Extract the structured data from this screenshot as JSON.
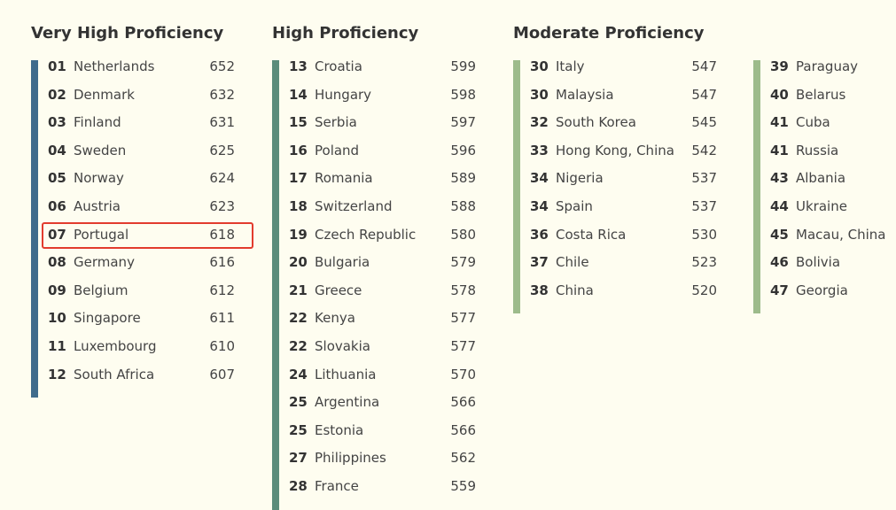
{
  "groups": [
    {
      "title": "Very High Proficiency",
      "columns": [
        {
          "rows": [
            {
              "rank": "01",
              "country": "Netherlands",
              "score": 652
            },
            {
              "rank": "02",
              "country": "Denmark",
              "score": 632
            },
            {
              "rank": "03",
              "country": "Finland",
              "score": 631
            },
            {
              "rank": "04",
              "country": "Sweden",
              "score": 625
            },
            {
              "rank": "05",
              "country": "Norway",
              "score": 624
            },
            {
              "rank": "06",
              "country": "Austria",
              "score": 623
            },
            {
              "rank": "07",
              "country": "Portugal",
              "score": 618
            },
            {
              "rank": "08",
              "country": "Germany",
              "score": 616
            },
            {
              "rank": "09",
              "country": "Belgium",
              "score": 612
            },
            {
              "rank": "10",
              "country": "Singapore",
              "score": 611
            },
            {
              "rank": "11",
              "country": "Luxembourg",
              "score": 610
            },
            {
              "rank": "12",
              "country": "South Africa",
              "score": 607
            }
          ]
        }
      ]
    },
    {
      "title": "High Proficiency",
      "columns": [
        {
          "rows": [
            {
              "rank": "13",
              "country": "Croatia",
              "score": 599
            },
            {
              "rank": "14",
              "country": "Hungary",
              "score": 598
            },
            {
              "rank": "15",
              "country": "Serbia",
              "score": 597
            },
            {
              "rank": "16",
              "country": "Poland",
              "score": 596
            },
            {
              "rank": "17",
              "country": "Romania",
              "score": 589
            },
            {
              "rank": "18",
              "country": "Switzerland",
              "score": 588
            },
            {
              "rank": "19",
              "country": "Czech Republic",
              "score": 580
            },
            {
              "rank": "20",
              "country": "Bulgaria",
              "score": 579
            },
            {
              "rank": "21",
              "country": "Greece",
              "score": 578
            },
            {
              "rank": "22",
              "country": "Kenya",
              "score": 577
            },
            {
              "rank": "22",
              "country": "Slovakia",
              "score": 577
            },
            {
              "rank": "24",
              "country": "Lithuania",
              "score": 570
            },
            {
              "rank": "25",
              "country": "Argentina",
              "score": 566
            },
            {
              "rank": "25",
              "country": "Estonia",
              "score": 566
            },
            {
              "rank": "27",
              "country": "Philippines",
              "score": 562
            },
            {
              "rank": "28",
              "country": "France",
              "score": 559
            }
          ]
        }
      ]
    },
    {
      "title": "Moderate Proficiency",
      "columns": [
        {
          "rows": [
            {
              "rank": "30",
              "country": "Italy",
              "score": 547
            },
            {
              "rank": "30",
              "country": "Malaysia",
              "score": 547
            },
            {
              "rank": "32",
              "country": "South Korea",
              "score": 545
            },
            {
              "rank": "33",
              "country": "Hong Kong, China",
              "score": 542
            },
            {
              "rank": "34",
              "country": "Nigeria",
              "score": 537
            },
            {
              "rank": "34",
              "country": "Spain",
              "score": 537
            },
            {
              "rank": "36",
              "country": "Costa Rica",
              "score": 530
            },
            {
              "rank": "37",
              "country": "Chile",
              "score": 523
            },
            {
              "rank": "38",
              "country": "China",
              "score": 520
            }
          ]
        },
        {
          "rows": [
            {
              "rank": "39",
              "country": "Paraguay"
            },
            {
              "rank": "40",
              "country": "Belarus"
            },
            {
              "rank": "41",
              "country": "Cuba"
            },
            {
              "rank": "41",
              "country": "Russia"
            },
            {
              "rank": "43",
              "country": "Albania"
            },
            {
              "rank": "44",
              "country": "Ukraine"
            },
            {
              "rank": "45",
              "country": "Macau, China"
            },
            {
              "rank": "46",
              "country": "Bolivia"
            },
            {
              "rank": "47",
              "country": "Georgia"
            }
          ]
        }
      ]
    }
  ]
}
